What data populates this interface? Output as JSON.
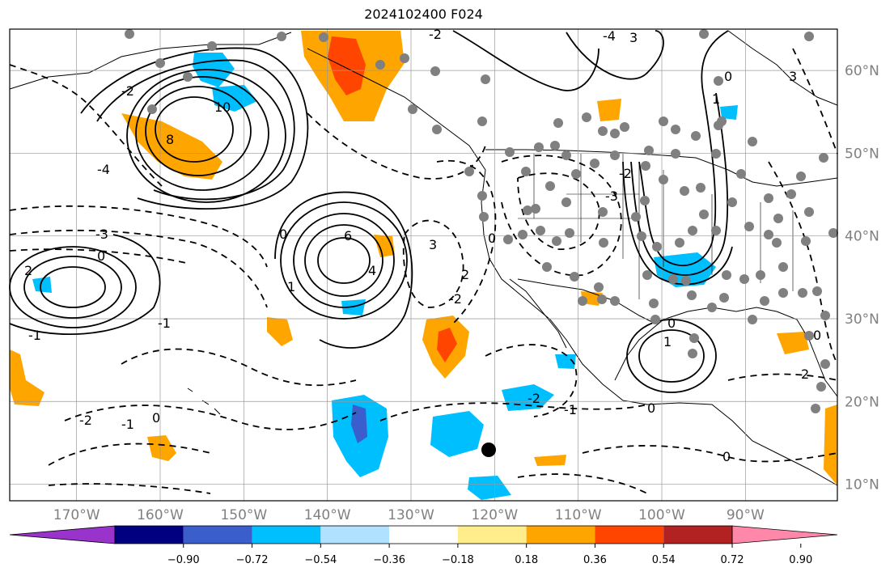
{
  "title": "2024102400 F024",
  "map": {
    "lon_ticks": [
      "170°W",
      "160°W",
      "150°W",
      "140°W",
      "130°W",
      "120°W",
      "110°W",
      "100°W",
      "90°W"
    ],
    "lat_ticks": [
      "60°N",
      "50°N",
      "40°N",
      "30°N",
      "20°N",
      "10°N"
    ],
    "lon_values": [
      -170,
      -160,
      -150,
      -140,
      -130,
      -120,
      -110,
      -100,
      -90
    ],
    "lat_values": [
      60,
      50,
      40,
      30,
      20,
      10
    ],
    "extent": {
      "lon_min": -178,
      "lon_max": -79,
      "lat_min": 8,
      "lat_max": 65
    },
    "contour_labels": [
      "-2",
      "-3",
      "-4",
      "-1",
      "0",
      "2",
      "1",
      "3",
      "4",
      "6",
      "8",
      "10"
    ]
  },
  "colorbar": {
    "tick_labels": [
      "−0.90",
      "−0.72",
      "−0.54",
      "−0.36",
      "−0.18",
      "0.18",
      "0.36",
      "0.54",
      "0.72",
      "0.90"
    ],
    "colors": [
      "#9933cc",
      "#000080",
      "#3a5fcd",
      "#00bfff",
      "#b0e2ff",
      "#ffffff",
      "#ffec8b",
      "#ffa500",
      "#ff4500",
      "#b22222",
      "#ff88aa"
    ]
  }
}
